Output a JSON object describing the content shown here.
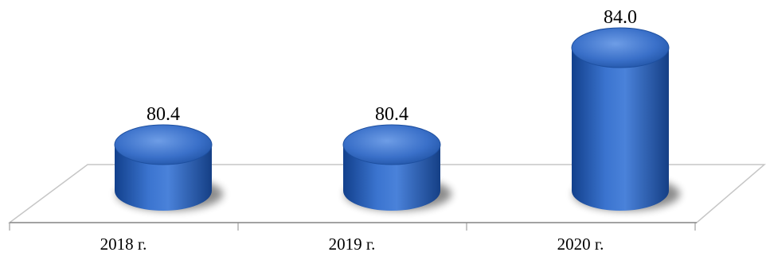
{
  "chart_data": {
    "type": "bar",
    "style": "3d-cylinder",
    "categories": [
      "2018 г.",
      "2019 г.",
      "2020 г."
    ],
    "values": [
      80.4,
      80.4,
      84.0
    ],
    "data_labels": [
      "80.4",
      "80.4",
      "84.0"
    ],
    "title": "",
    "xlabel": "",
    "ylabel": "",
    "ylim": [
      79.5,
      84.0
    ],
    "grid": false,
    "legend": "none",
    "colors": {
      "bar": "#2f63b7",
      "bar_light": "#5b8de0",
      "bar_dark": "#113a80",
      "floor_line": "#c6c6c6",
      "axis_line": "#8c8c8c"
    }
  }
}
